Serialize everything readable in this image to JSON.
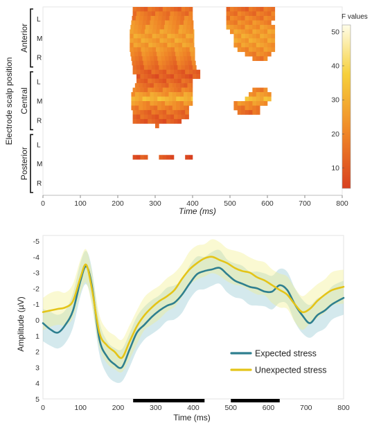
{
  "chart_data": [
    {
      "type": "heatmap",
      "xlabel": "Time (ms)",
      "ylabel": "Electrode scalp position",
      "xlim": [
        0,
        800
      ],
      "xticks": [
        "0",
        "100",
        "200",
        "300",
        "400",
        "500",
        "600",
        "700",
        "800"
      ],
      "groups": [
        {
          "name": "Anterior",
          "rows": [
            "L",
            "M",
            "R"
          ]
        },
        {
          "name": "Central",
          "rows": [
            "L",
            "M",
            "R"
          ]
        },
        {
          "name": "Posterior",
          "rows": [
            "L",
            "M",
            "R"
          ]
        }
      ],
      "row_count": 42,
      "colorbar": {
        "label": "F values",
        "min": 4,
        "max": 52,
        "ticks": [
          "10",
          "20",
          "30",
          "40",
          "50"
        ],
        "colors": [
          "#d8401f",
          "#f08828",
          "#f6d03c",
          "#fffde8"
        ]
      },
      "cells": [
        {
          "row": 0,
          "t": [
            [
              240,
              400
            ],
            [
              490,
              620
            ]
          ],
          "f": 14
        },
        {
          "row": 1,
          "t": [
            [
              240,
              400
            ],
            [
              490,
              620
            ]
          ],
          "f": 16
        },
        {
          "row": 2,
          "t": [
            [
              238,
              400
            ],
            [
              490,
              620
            ]
          ],
          "f": 18
        },
        {
          "row": 3,
          "t": [
            [
              236,
              402
            ],
            [
              490,
              610
            ]
          ],
          "f": 20
        },
        {
          "row": 4,
          "t": [
            [
              234,
              402
            ],
            [
              490,
              620
            ]
          ],
          "f": 22
        },
        {
          "row": 5,
          "t": [
            [
              232,
              404
            ],
            [
              500,
              620
            ]
          ],
          "f": 24
        },
        {
          "row": 6,
          "t": [
            [
              232,
              404
            ],
            [
              510,
              620
            ]
          ],
          "f": 25
        },
        {
          "row": 7,
          "t": [
            [
              232,
              404
            ],
            [
              510,
              620
            ]
          ],
          "f": 25
        },
        {
          "row": 8,
          "t": [
            [
              232,
              404
            ],
            [
              510,
              620
            ]
          ],
          "f": 24
        },
        {
          "row": 9,
          "t": [
            [
              232,
              406
            ],
            [
              520,
              620
            ]
          ],
          "f": 22
        },
        {
          "row": 10,
          "t": [
            [
              234,
              406
            ],
            [
              540,
              610
            ]
          ],
          "f": 20
        },
        {
          "row": 11,
          "t": [
            [
              236,
              406
            ],
            [
              560,
              600
            ]
          ],
          "f": 18
        },
        {
          "row": 12,
          "t": [
            [
              238,
              408
            ]
          ],
          "f": 16
        },
        {
          "row": 13,
          "t": [
            [
              240,
              410
            ]
          ],
          "f": 14
        },
        {
          "row": 14,
          "t": [
            [
              240,
              420
            ]
          ],
          "f": 12
        },
        {
          "row": 15,
          "t": [
            [
              250,
              420
            ]
          ],
          "f": 10
        },
        {
          "row": 16,
          "t": [
            [
              250,
              400
            ]
          ],
          "f": 12
        },
        {
          "row": 17,
          "t": [
            [
              246,
              400
            ]
          ],
          "f": 14
        },
        {
          "row": 18,
          "t": [
            [
              240,
              400
            ],
            [
              560,
              600
            ]
          ],
          "f": 18
        },
        {
          "row": 19,
          "t": [
            [
              236,
              400
            ],
            [
              550,
              610
            ]
          ],
          "f": 24
        },
        {
          "row": 20,
          "t": [
            [
              236,
              400
            ],
            [
              540,
              610
            ]
          ],
          "f": 30
        },
        {
          "row": 21,
          "t": [
            [
              236,
              400
            ],
            [
              510,
              600
            ]
          ],
          "f": 22
        },
        {
          "row": 22,
          "t": [
            [
              236,
              390
            ],
            [
              510,
              580
            ]
          ],
          "f": 18
        },
        {
          "row": 23,
          "t": [
            [
              240,
              390
            ],
            [
              520,
              580
            ]
          ],
          "f": 14
        },
        {
          "row": 24,
          "t": [
            [
              240,
              390
            ]
          ],
          "f": 12
        },
        {
          "row": 25,
          "t": [
            [
              240,
              370
            ]
          ],
          "f": 10
        },
        {
          "row": 26,
          "t": [
            [
              300,
              310
            ]
          ],
          "f": 9
        },
        {
          "row": 33,
          "t": [
            [
              240,
              280
            ],
            [
              310,
              350
            ],
            [
              380,
              400
            ]
          ],
          "f": 8
        }
      ]
    },
    {
      "type": "line",
      "xlabel": "Time (ms)",
      "ylabel": "Amplitude (µV)",
      "xlim": [
        0,
        800
      ],
      "ylim": [
        5,
        -5
      ],
      "xticks": [
        "0",
        "100",
        "200",
        "300",
        "400",
        "500",
        "600",
        "700",
        "800"
      ],
      "yticks": [
        "-5",
        "-4",
        "-3",
        "-2",
        "-1",
        "0",
        "1",
        "2",
        "3",
        "4",
        "5"
      ],
      "x": [
        0,
        20,
        40,
        60,
        80,
        100,
        115,
        130,
        150,
        170,
        190,
        210,
        230,
        250,
        270,
        290,
        310,
        330,
        350,
        370,
        390,
        410,
        430,
        450,
        470,
        490,
        510,
        530,
        550,
        570,
        590,
        610,
        630,
        650,
        670,
        690,
        710,
        730,
        750,
        770,
        800
      ],
      "series": [
        {
          "name": "Expected stress",
          "color": "#2e7f8f",
          "values": [
            0.2,
            0.6,
            0.8,
            0.3,
            -0.6,
            -2.5,
            -3.4,
            -2.2,
            1.2,
            2.3,
            2.8,
            3.0,
            1.9,
            0.8,
            0.3,
            -0.2,
            -0.6,
            -0.9,
            -1.1,
            -1.6,
            -2.3,
            -2.9,
            -3.1,
            -3.2,
            -3.3,
            -2.9,
            -2.5,
            -2.3,
            -2.1,
            -2.0,
            -1.8,
            -1.8,
            -2.2,
            -1.9,
            -1.0,
            -0.3,
            0.2,
            -0.3,
            -0.6,
            -1.0,
            -1.4
          ]
        },
        {
          "name": "Unexpected stress",
          "color": "#e4c418",
          "values": [
            -0.5,
            -0.6,
            -0.7,
            -0.8,
            -1.2,
            -2.7,
            -3.5,
            -2.0,
            0.8,
            1.6,
            2.0,
            2.4,
            1.4,
            0.4,
            -0.3,
            -0.8,
            -1.2,
            -1.5,
            -1.9,
            -2.6,
            -3.2,
            -3.6,
            -3.9,
            -4.0,
            -3.8,
            -3.6,
            -3.3,
            -3.1,
            -3.0,
            -2.7,
            -2.5,
            -2.2,
            -1.9,
            -1.6,
            -1.0,
            -0.5,
            -0.7,
            -1.2,
            -1.6,
            -1.9,
            -2.1
          ]
        }
      ],
      "significance_bars": [
        [
          240,
          430
        ],
        [
          500,
          630
        ]
      ],
      "legend": "bottom-right"
    }
  ]
}
